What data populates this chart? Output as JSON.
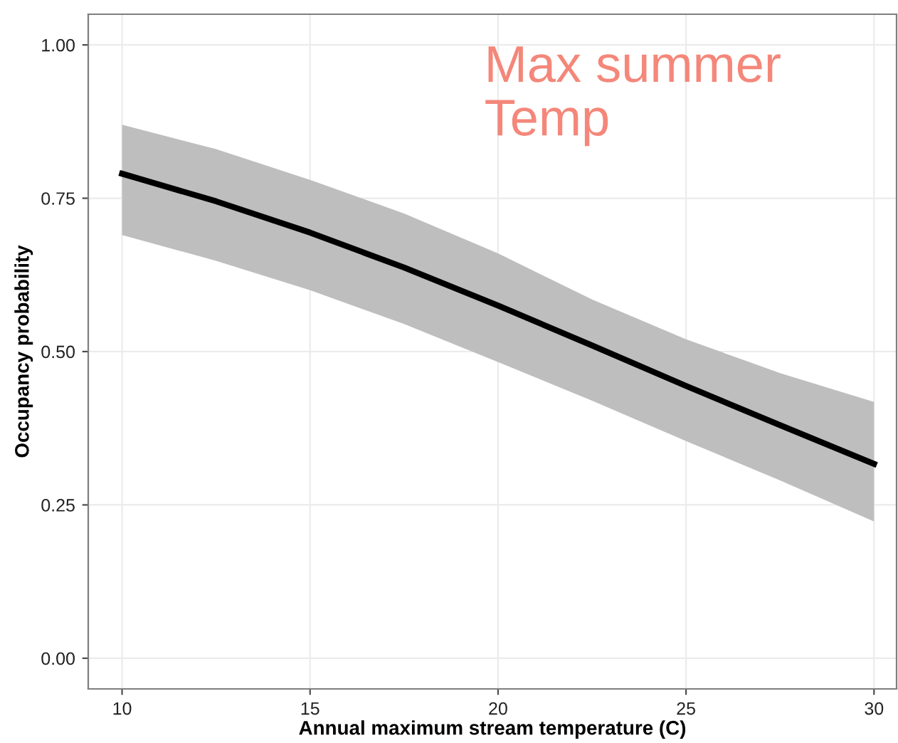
{
  "chart_data": {
    "type": "line",
    "xlabel": "Annual maximum stream temperature (C)",
    "ylabel": "Occupancy probability",
    "x": [
      10,
      12.5,
      15,
      17.5,
      20,
      22.5,
      25,
      27.5,
      30
    ],
    "series": [
      {
        "color": "#000000",
        "values": [
          0.79,
          0.745,
          0.694,
          0.637,
          0.575,
          0.51,
          0.444,
          0.38,
          0.317
        ],
        "upper": [
          0.87,
          0.83,
          0.78,
          0.725,
          0.66,
          0.585,
          0.52,
          0.465,
          0.418
        ],
        "lower": [
          0.69,
          0.648,
          0.6,
          0.545,
          0.483,
          0.42,
          0.354,
          0.29,
          0.223
        ]
      }
    ],
    "xlim": [
      9.1,
      30.6
    ],
    "ylim": [
      -0.05,
      1.05
    ],
    "xticks": [
      10,
      15,
      20,
      25,
      30
    ],
    "yticks": [
      {
        "value": 0,
        "label": "0.00"
      },
      {
        "value": 0.25,
        "label": "0.25"
      },
      {
        "value": 0.5,
        "label": "0.50"
      },
      {
        "value": 0.75,
        "label": "0.75"
      },
      {
        "value": 1,
        "label": "1.00"
      }
    ],
    "grid": true,
    "marker": "none",
    "line_style": "solid",
    "annotations": [
      "Max summer\nTemp"
    ]
  }
}
